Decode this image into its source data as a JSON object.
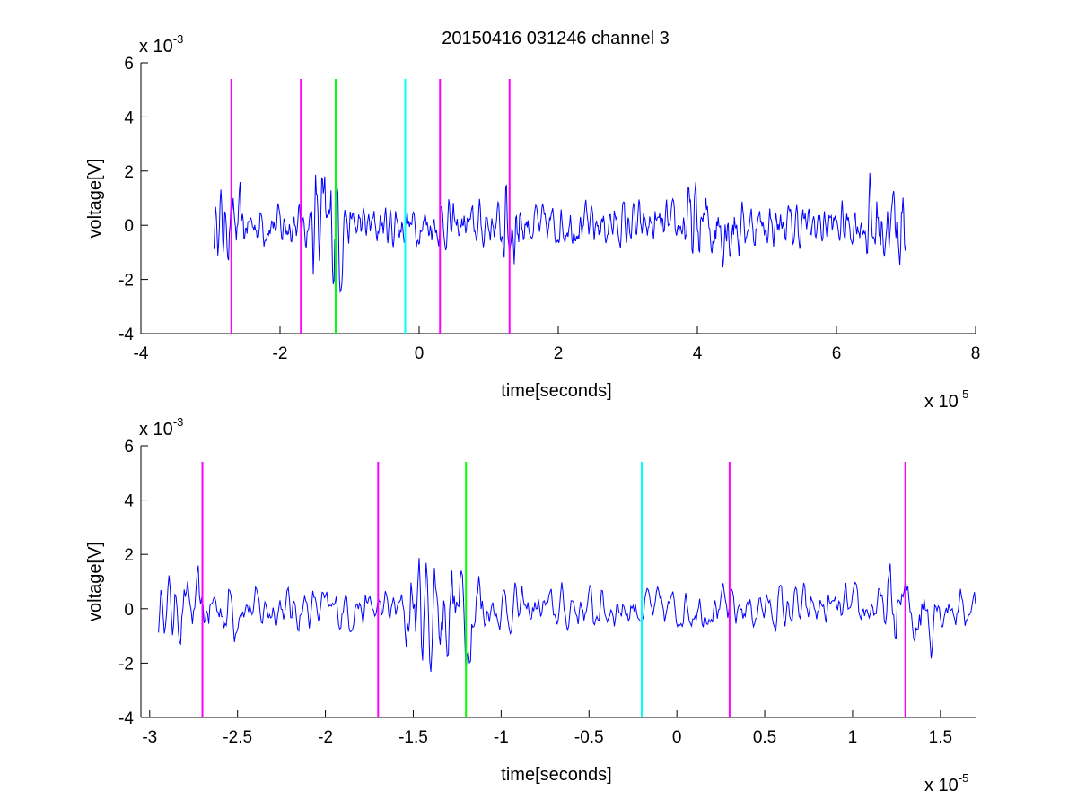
{
  "figure": {
    "title": "20150416 031246 channel 3"
  },
  "chart_data": [
    {
      "type": "line",
      "title": "20150416 031246 channel 3",
      "xlabel": "time[seconds]",
      "ylabel": "voltage[V]",
      "x_scale_label": {
        "prefix": "x 10",
        "exponent": "-5"
      },
      "y_scale_label": {
        "prefix": "x 10",
        "exponent": "-3"
      },
      "xlim": [
        -4,
        8
      ],
      "ylim": [
        -4,
        6
      ],
      "xticks": [
        -4,
        -2,
        0,
        2,
        4,
        6,
        8
      ],
      "xtick_labels": [
        "-4",
        "-2",
        "0",
        "2",
        "4",
        "6",
        "8"
      ],
      "yticks": [
        -4,
        -2,
        0,
        2,
        4,
        6
      ],
      "ytick_labels": [
        "-4",
        "-2",
        "0",
        "2",
        "4",
        "6"
      ],
      "signal_range": [
        -2.95,
        7.0
      ],
      "markers": [
        {
          "x": -2.7,
          "color": "#ff00ff"
        },
        {
          "x": -1.7,
          "color": "#ff00ff"
        },
        {
          "x": -1.2,
          "color": "#00ff00"
        },
        {
          "x": -0.2,
          "color": "#00ffff"
        },
        {
          "x": 0.3,
          "color": "#ff00ff"
        },
        {
          "x": 1.3,
          "color": "#ff00ff"
        }
      ],
      "signal_color": "#0000ff"
    },
    {
      "type": "line",
      "xlabel": "time[seconds]",
      "ylabel": "voltage[V]",
      "x_scale_label": {
        "prefix": "x 10",
        "exponent": "-5"
      },
      "y_scale_label": {
        "prefix": "x 10",
        "exponent": "-3"
      },
      "xlim": [
        -3.05,
        1.7
      ],
      "ylim": [
        -4,
        6
      ],
      "xticks": [
        -3,
        -2.5,
        -2,
        -1.5,
        -1,
        -0.5,
        0,
        0.5,
        1,
        1.5
      ],
      "xtick_labels": [
        "-3",
        "-2.5",
        "-2",
        "-1.5",
        "-1",
        "-0.5",
        "0",
        "0.5",
        "1",
        "1.5"
      ],
      "yticks": [
        -4,
        -2,
        0,
        2,
        4,
        6
      ],
      "ytick_labels": [
        "-4",
        "-2",
        "0",
        "2",
        "4",
        "6"
      ],
      "signal_range": [
        -2.95,
        1.7
      ],
      "markers": [
        {
          "x": -2.7,
          "color": "#ff00ff"
        },
        {
          "x": -1.7,
          "color": "#ff00ff"
        },
        {
          "x": -1.2,
          "color": "#00ff00"
        },
        {
          "x": -0.2,
          "color": "#00ffff"
        },
        {
          "x": 0.3,
          "color": "#ff00ff"
        },
        {
          "x": 1.3,
          "color": "#ff00ff"
        }
      ],
      "signal_color": "#0000ff"
    }
  ]
}
